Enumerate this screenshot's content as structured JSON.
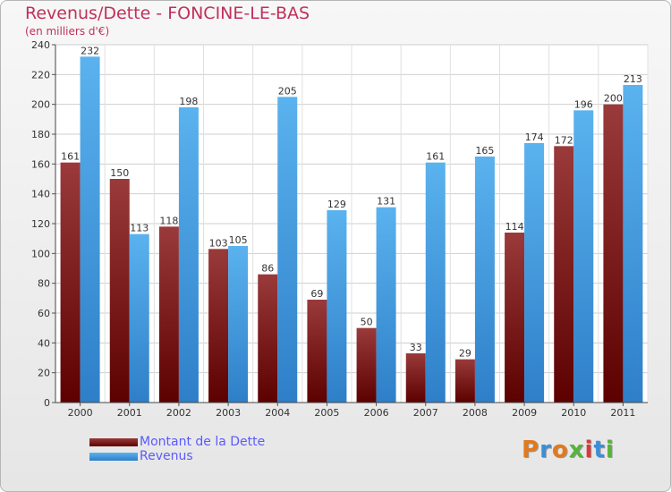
{
  "colors": {
    "dette": "#6b0b0b",
    "dette_light": "#9a3a3a",
    "revenus": "#2e7fc8",
    "revenus_light": "#5ab2ee",
    "title": "#c0305a",
    "legend_text": "#5a5aff"
  },
  "header": {
    "title": "Revenus/Dette - FONCINE-LE-BAS",
    "subtitle": "(en milliers d'€)"
  },
  "legend": {
    "dette_label": "Montant de la Dette",
    "revenus_label": "Revenus"
  },
  "logo": {
    "text": "Proxiti"
  },
  "chart_data": {
    "type": "bar",
    "title": "Revenus/Dette - FONCINE-LE-BAS",
    "subtitle": "(en milliers d'€)",
    "xlabel": "",
    "ylabel": "",
    "ylim": [
      0,
      240
    ],
    "yticks": [
      0,
      20,
      40,
      60,
      80,
      100,
      120,
      140,
      160,
      180,
      200,
      220,
      240
    ],
    "grid": true,
    "legend_position": "bottom-left",
    "categories": [
      "2000",
      "2001",
      "2002",
      "2003",
      "2004",
      "2005",
      "2006",
      "2007",
      "2008",
      "2009",
      "2010",
      "2011"
    ],
    "series": [
      {
        "name": "Montant de la Dette",
        "values": [
          161,
          150,
          118,
          103,
          86,
          69,
          50,
          33,
          29,
          114,
          172,
          200
        ]
      },
      {
        "name": "Revenus",
        "values": [
          232,
          113,
          198,
          105,
          205,
          129,
          131,
          161,
          165,
          174,
          196,
          213
        ]
      }
    ]
  }
}
